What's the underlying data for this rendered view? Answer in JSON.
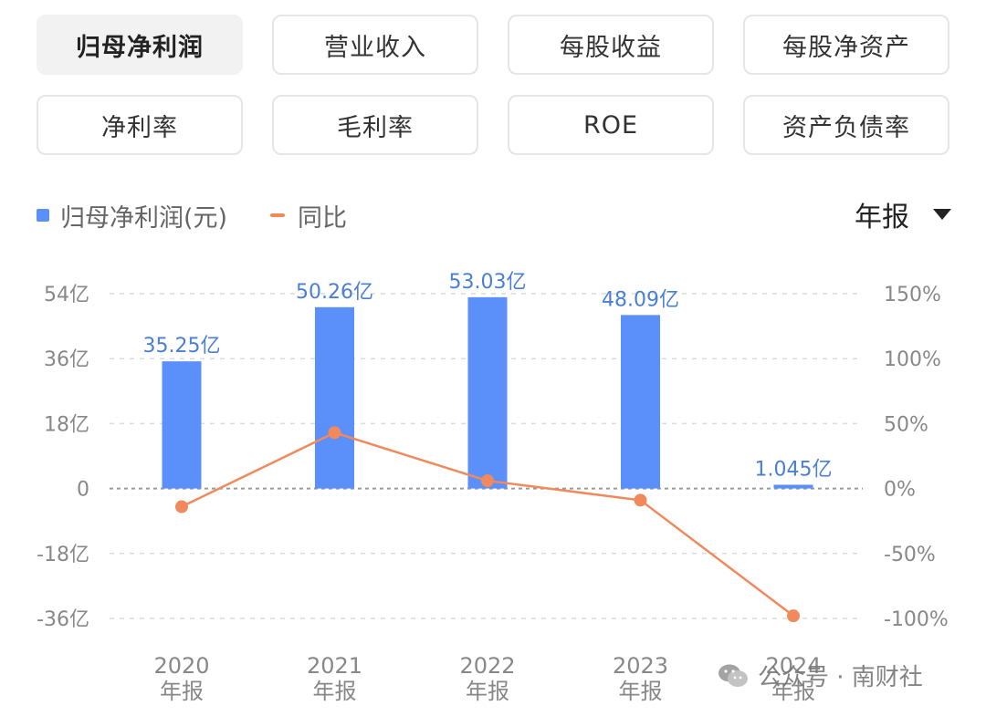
{
  "tabs": [
    {
      "label": "归母净利润",
      "active": true
    },
    {
      "label": "营业收入",
      "active": false
    },
    {
      "label": "每股收益",
      "active": false
    },
    {
      "label": "每股净资产",
      "active": false
    },
    {
      "label": "净利率",
      "active": false
    },
    {
      "label": "毛利率",
      "active": false
    },
    {
      "label": "ROE",
      "active": false
    },
    {
      "label": "资产负债率",
      "active": false
    }
  ],
  "legend": {
    "bar": "归母净利润(元)",
    "line": "同比"
  },
  "period_selector": {
    "value": "年报",
    "icon": "caret-down-icon"
  },
  "colors": {
    "bar": "#5b8ff9",
    "line": "#f08a5d",
    "bar_label": "#4a7fd6"
  },
  "chart_data": {
    "type": "bar",
    "categories": [
      {
        "year": "2020",
        "sub": "年报"
      },
      {
        "year": "2021",
        "sub": "年报"
      },
      {
        "year": "2022",
        "sub": "年报"
      },
      {
        "year": "2023",
        "sub": "年报"
      },
      {
        "year": "2024",
        "sub": "年报"
      }
    ],
    "series": [
      {
        "name": "归母净利润(元)",
        "type": "bar",
        "axis": "left",
        "values": [
          35.25,
          50.26,
          53.03,
          48.09,
          1.045
        ],
        "labels": [
          "35.25亿",
          "50.26亿",
          "53.03亿",
          "48.09亿",
          "1.045亿"
        ]
      },
      {
        "name": "同比",
        "type": "line",
        "axis": "right",
        "values": [
          -14,
          43,
          6,
          -9,
          -98
        ]
      }
    ],
    "y_left": {
      "ticks": [
        "54亿",
        "36亿",
        "18亿",
        "0",
        "-18亿",
        "-36亿"
      ],
      "values": [
        54,
        36,
        18,
        0,
        -18,
        -36
      ],
      "ylim": [
        -36,
        54
      ]
    },
    "y_right": {
      "ticks": [
        "150%",
        "100%",
        "50%",
        "0%",
        "-50%",
        "-100%"
      ],
      "values": [
        150,
        100,
        50,
        0,
        -50,
        -100
      ],
      "ylim": [
        -100,
        150
      ]
    },
    "grid": true,
    "legend_position": "top-left"
  },
  "watermark": {
    "text": "公众号 · 南财社",
    "icon": "wechat-icon"
  }
}
